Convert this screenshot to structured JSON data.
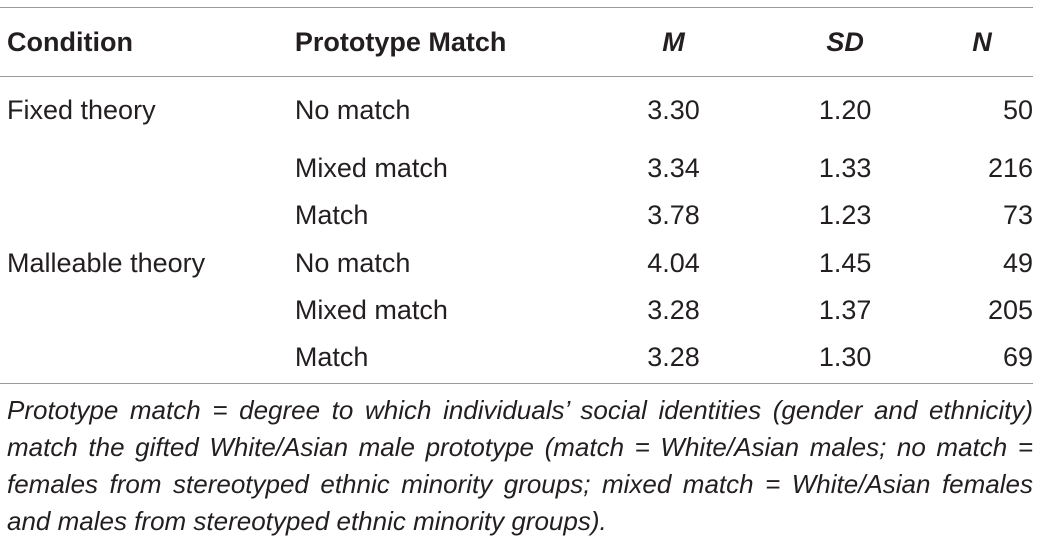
{
  "table": {
    "headers": {
      "condition": "Condition",
      "prototype_match": "Prototype Match",
      "m": "M",
      "sd": "SD",
      "n": "N"
    },
    "rows": [
      {
        "condition": "Fixed theory",
        "prototype_match": "No match",
        "m": "3.30",
        "sd": "1.20",
        "n": "50"
      },
      {
        "condition": "",
        "prototype_match": "Mixed match",
        "m": "3.34",
        "sd": "1.33",
        "n": "216"
      },
      {
        "condition": "",
        "prototype_match": "Match",
        "m": "3.78",
        "sd": "1.23",
        "n": "73"
      },
      {
        "condition": "Malleable theory",
        "prototype_match": "No match",
        "m": "4.04",
        "sd": "1.45",
        "n": "49"
      },
      {
        "condition": "",
        "prototype_match": "Mixed match",
        "m": "3.28",
        "sd": "1.37",
        "n": "205"
      },
      {
        "condition": "",
        "prototype_match": "Match",
        "m": "3.28",
        "sd": "1.30",
        "n": "69"
      }
    ]
  },
  "note": "Prototype match = degree to which individuals’ social identities (gender and ethnicity) match the gifted White/Asian male prototype (match = White/Asian males; no match = females from stereotyped ethnic minority groups; mixed match = White/Asian females and males from stereotyped ethnic minority groups)."
}
